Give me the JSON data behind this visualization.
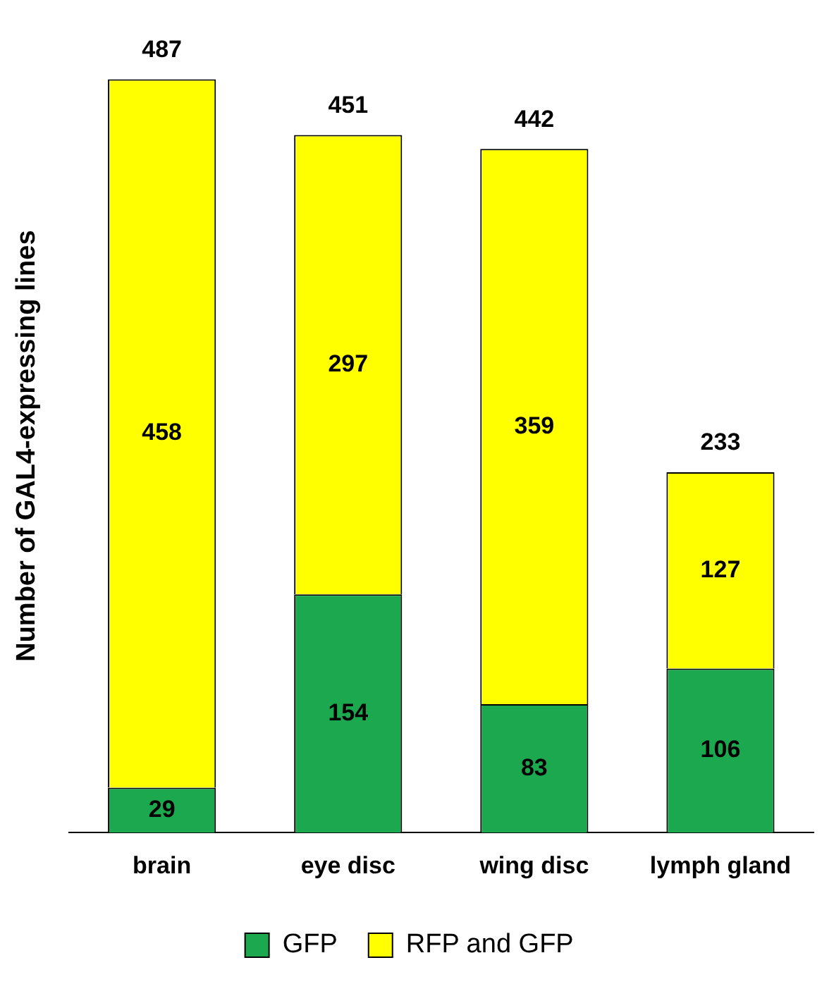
{
  "chart_data": {
    "type": "bar",
    "stacked": true,
    "ylabel": "Number of GAL4-expressing lines",
    "categories": [
      "brain",
      "eye disc",
      "wing disc",
      "lymph gland"
    ],
    "series": [
      {
        "name": "GFP",
        "color": "#1ba84f",
        "values": [
          29,
          154,
          83,
          106
        ]
      },
      {
        "name": "RFP and GFP",
        "color": "#ffff00",
        "values": [
          458,
          297,
          359,
          127
        ]
      }
    ],
    "data_labels": true,
    "totals": [
      "487",
      "451",
      "442",
      "233"
    ],
    "legend": "bottom",
    "grid": false
  }
}
